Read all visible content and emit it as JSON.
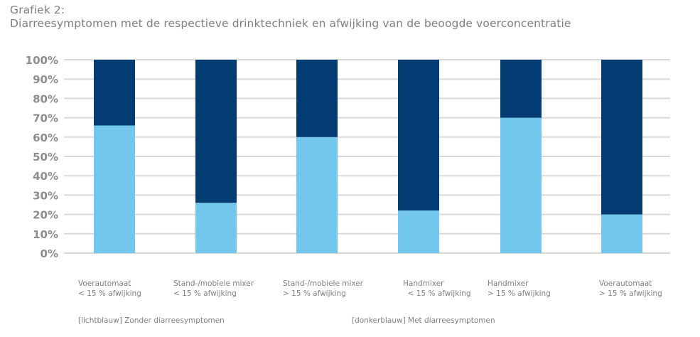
{
  "header": {
    "title_line1": "Grafiek 2:",
    "title_line2": "Diarreesymptomen met de respectieve drinktechniek en afwijking van de beoogde voerconcentratie"
  },
  "legend": {
    "light": "[lichtblauw] Zonder diarreesymptomen",
    "dark": "[donkerblauw] Met diarreesymptomen"
  },
  "colors": {
    "light": "#74c7ec",
    "dark": "#033c73",
    "grid": "#d9d9d9",
    "text": "#7f7f7f"
  },
  "chart_data": {
    "type": "bar",
    "stacked": true,
    "percent": true,
    "title": "Diarreesymptomen met de respectieve drinktechniek en afwijking van de beoogde voerconcentratie",
    "xlabel": "",
    "ylabel": "",
    "ylim": [
      0,
      100
    ],
    "yticks": [
      "0%",
      "10%",
      "20%",
      "30%",
      "40%",
      "50%",
      "60%",
      "70%",
      "80%",
      "90%",
      "100%"
    ],
    "grid": true,
    "legend_position": "bottom",
    "categories": [
      {
        "line1": "Voerautomaat",
        "line2": "< 15 % afwijking"
      },
      {
        "line1": "Stand-/mobiele mixer",
        "line2": "< 15 % afwijking"
      },
      {
        "line1": "Stand-/mobiele mixer",
        "line2": "> 15 % afwijking"
      },
      {
        "line1": "Handmixer",
        "line2": "  < 15 % afwijking"
      },
      {
        "line1": "Handmixer",
        "line2": "> 15 % afwijking"
      },
      {
        "line1": "Voerautomaat",
        "line2": "> 15 % afwijking"
      }
    ],
    "series": [
      {
        "name": "Zonder diarreesymptomen",
        "color": "light",
        "values": [
          66,
          26,
          60,
          22,
          70,
          20
        ]
      },
      {
        "name": "Met diarreesymptomen",
        "color": "dark",
        "values": [
          34,
          74,
          40,
          78,
          30,
          80
        ]
      }
    ]
  }
}
